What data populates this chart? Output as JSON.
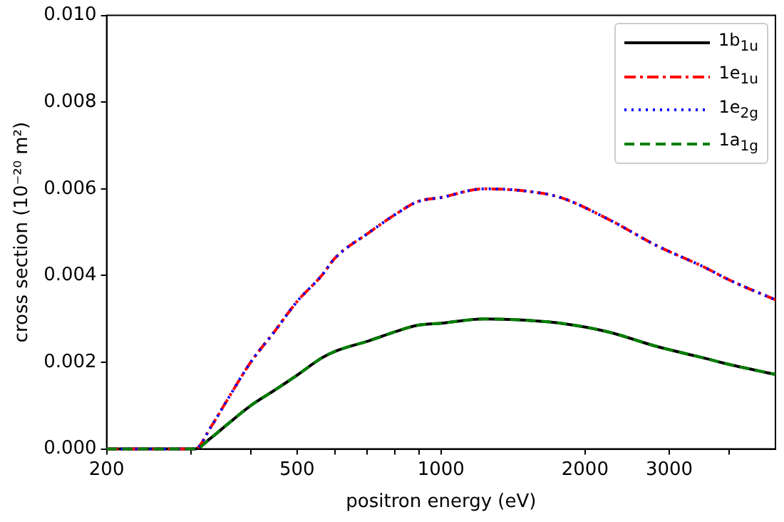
{
  "chart_data": {
    "type": "line",
    "xlabel": "positron energy (eV)",
    "ylabel": "cross section (10⁻²⁰ m²)",
    "log": "x",
    "xlim": [
      200,
      5000
    ],
    "xticks": [
      200,
      {
        "value": 300,
        "label": null
      },
      {
        "value": 400,
        "label": null
      },
      500,
      {
        "value": 600,
        "label": null
      },
      {
        "value": 700,
        "label": null
      },
      {
        "value": 800,
        "label": null
      },
      {
        "value": 900,
        "label": null
      },
      1000,
      2000,
      3000,
      {
        "value": 4000,
        "label": null
      }
    ],
    "ylim": [
      0,
      0.01
    ],
    "yticks": [
      {
        "value": 0,
        "label": "0.000"
      },
      {
        "value": 0.002,
        "label": "0.002"
      },
      {
        "value": 0.004,
        "label": "0.004"
      },
      {
        "value": 0.006,
        "label": "0.006"
      },
      {
        "value": 0.008,
        "label": "0.008"
      },
      {
        "value": 0.01,
        "label": "0.010"
      }
    ],
    "x": [
      200,
      250,
      306,
      330,
      356,
      400,
      448,
      500,
      563,
      600,
      709,
      800,
      891,
      1000,
      1230,
      1500,
      1776,
      2236,
      2812,
      3539,
      4000,
      5000
    ],
    "series": [
      {
        "name": "1b$_{1u}$",
        "color": "#000000",
        "line_style": "solid",
        "values": [
          0,
          0,
          0,
          0.00025,
          0.00055,
          0.001,
          0.00135,
          0.0017,
          0.0021,
          0.00225,
          0.0025,
          0.0027,
          0.00285,
          0.0029,
          0.003,
          0.00297,
          0.0029,
          0.0027,
          0.00237,
          0.0021,
          0.00195,
          0.00172
        ]
      },
      {
        "name": "1e$_{1u}$",
        "color": "#ff0000",
        "line_style": "dashdot",
        "values": [
          0,
          0,
          0,
          0.0005,
          0.0011,
          0.002,
          0.0027,
          0.0034,
          0.004,
          0.0044,
          0.005,
          0.0054,
          0.0057,
          0.0058,
          0.006,
          0.00595,
          0.0058,
          0.0053,
          0.0047,
          0.0042,
          0.0039,
          0.00344
        ]
      },
      {
        "name": "1e$_{2g}$",
        "color": "#0000ff",
        "line_style": "dotted",
        "values": [
          0,
          0,
          0,
          0.0005,
          0.0011,
          0.002,
          0.0027,
          0.0034,
          0.004,
          0.0044,
          0.005,
          0.0054,
          0.0057,
          0.0058,
          0.006,
          0.00595,
          0.0058,
          0.0053,
          0.0047,
          0.0042,
          0.0039,
          0.00344
        ]
      },
      {
        "name": "1a$_{1g}$",
        "color": "#008000",
        "line_style": "dashed",
        "values": [
          0,
          0,
          0,
          0.00025,
          0.00055,
          0.001,
          0.00135,
          0.0017,
          0.0021,
          0.00225,
          0.0025,
          0.0027,
          0.00285,
          0.0029,
          0.003,
          0.00297,
          0.0029,
          0.0027,
          0.00237,
          0.0021,
          0.00195,
          0.00172
        ]
      }
    ],
    "legend": "top right",
    "grid": false,
    "marker": "none"
  }
}
